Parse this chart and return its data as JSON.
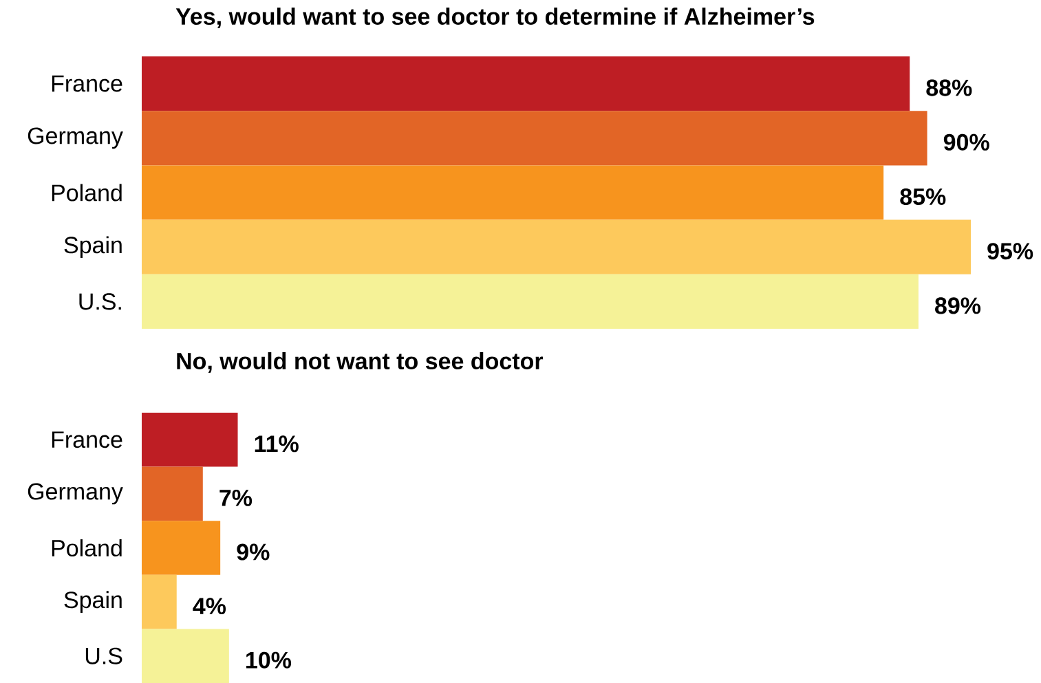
{
  "chart_data": [
    {
      "type": "bar",
      "orientation": "horizontal",
      "title": "Yes, would want to see doctor to determine if Alzheimer’s",
      "categories": [
        "France",
        "Germany",
        "Poland",
        "Spain",
        "U.S."
      ],
      "values": [
        88,
        90,
        85,
        95,
        89
      ],
      "value_labels": [
        "88%",
        "90%",
        "85%",
        "95%",
        "89%"
      ],
      "colors": [
        "#be1e24",
        "#e26526",
        "#f7941e",
        "#fdc95c",
        "#f5f297"
      ],
      "tick_labels": "y"
    },
    {
      "type": "bar",
      "orientation": "horizontal",
      "title": "No, would not want to see doctor",
      "categories": [
        "France",
        "Germany",
        "Poland",
        "Spain",
        "U.S"
      ],
      "values": [
        11,
        7,
        9,
        4,
        10
      ],
      "value_labels": [
        "11%",
        "7%",
        "9%",
        "4%",
        "10%"
      ],
      "colors": [
        "#be1e24",
        "#e26526",
        "#f7941e",
        "#fdc95c",
        "#f5f297"
      ],
      "tick_labels": "y"
    }
  ]
}
